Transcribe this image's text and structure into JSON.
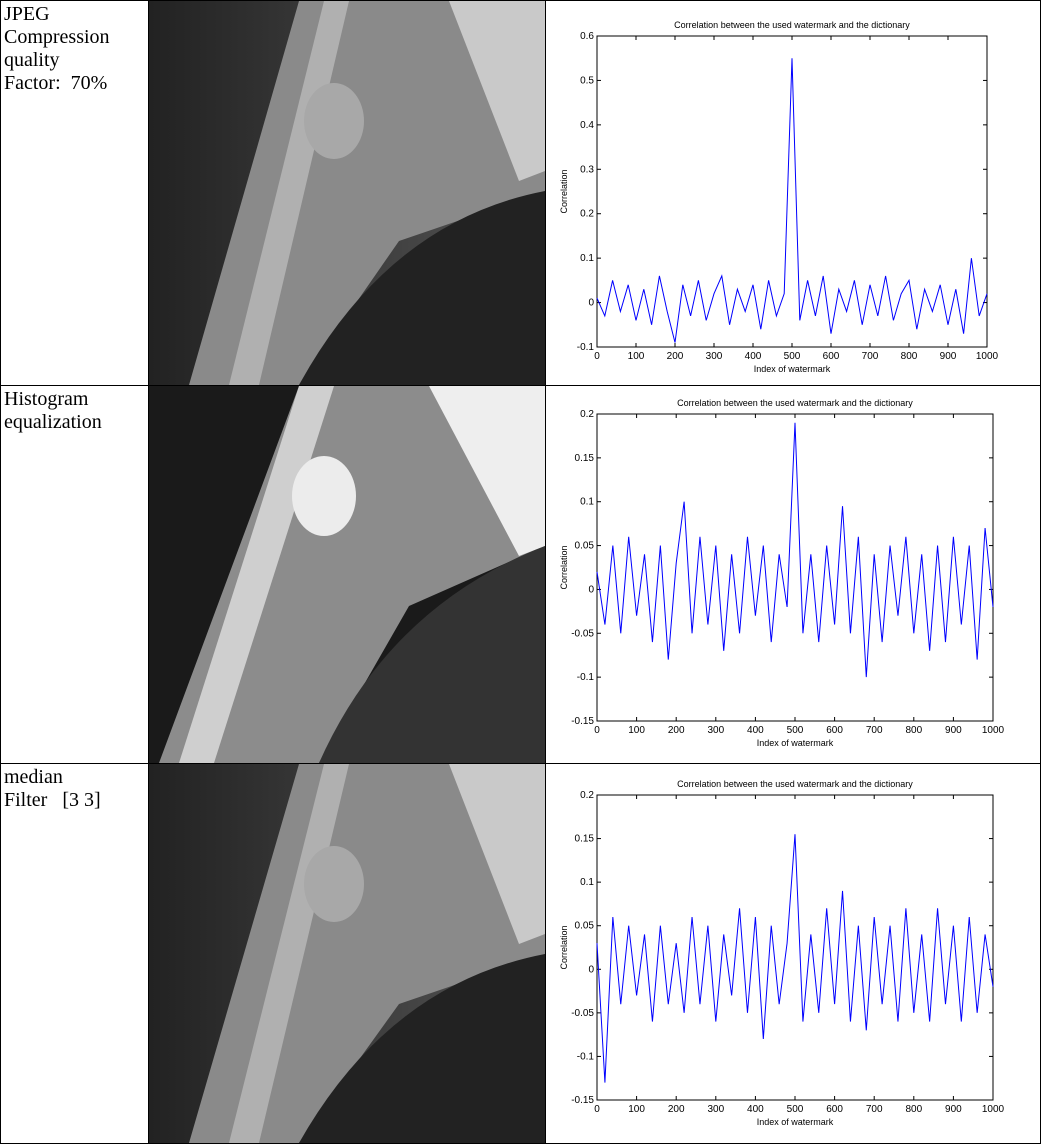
{
  "table": {
    "rows": [
      {
        "label": [
          "JPEG",
          "Compression",
          "quality",
          "Factor:  70%"
        ]
      },
      {
        "label": [
          "Histogram",
          "equalization"
        ]
      },
      {
        "label": [
          "median",
          "Filter   [3 3]"
        ]
      }
    ]
  },
  "chart_data": [
    {
      "type": "line",
      "title": "Correlation between the used watermark and the dictionary",
      "xlabel": "Index of watermark",
      "ylabel": "Correlation",
      "color": "#0000ff",
      "xlim": [
        0,
        1000
      ],
      "ylim": [
        -0.1,
        0.6
      ],
      "xticks": [
        0,
        100,
        200,
        300,
        400,
        500,
        600,
        700,
        800,
        900,
        1000
      ],
      "yticks": [
        -0.1,
        0,
        0.1,
        0.2,
        0.3,
        0.4,
        0.5,
        0.6
      ],
      "x": [
        0,
        20,
        40,
        60,
        80,
        100,
        120,
        140,
        160,
        180,
        200,
        220,
        240,
        260,
        280,
        300,
        320,
        340,
        360,
        380,
        400,
        420,
        440,
        460,
        480,
        500,
        520,
        540,
        560,
        580,
        600,
        620,
        640,
        660,
        680,
        700,
        720,
        740,
        760,
        780,
        800,
        820,
        840,
        860,
        880,
        900,
        920,
        940,
        960,
        980,
        1000
      ],
      "values": [
        0.01,
        -0.03,
        0.05,
        -0.02,
        0.04,
        -0.04,
        0.03,
        -0.05,
        0.06,
        -0.02,
        -0.09,
        0.04,
        -0.03,
        0.05,
        -0.04,
        0.02,
        0.06,
        -0.05,
        0.03,
        -0.02,
        0.04,
        -0.06,
        0.05,
        -0.03,
        0.02,
        0.55,
        -0.04,
        0.05,
        -0.03,
        0.06,
        -0.07,
        0.03,
        -0.02,
        0.05,
        -0.05,
        0.04,
        -0.03,
        0.06,
        -0.04,
        0.02,
        0.05,
        -0.06,
        0.03,
        -0.02,
        0.04,
        -0.05,
        0.03,
        -0.07,
        0.1,
        -0.03,
        0.02
      ]
    },
    {
      "type": "line",
      "title": "Correlation between the used watermark and the dictionary",
      "xlabel": "Index of watermark",
      "ylabel": "Correlation",
      "color": "#0000ff",
      "xlim": [
        0,
        1000
      ],
      "ylim": [
        -0.15,
        0.2
      ],
      "xticks": [
        0,
        100,
        200,
        300,
        400,
        500,
        600,
        700,
        800,
        900,
        1000
      ],
      "yticks": [
        -0.15,
        -0.1,
        -0.05,
        0,
        0.05,
        0.1,
        0.15,
        0.2
      ],
      "x": [
        0,
        20,
        40,
        60,
        80,
        100,
        120,
        140,
        160,
        180,
        200,
        220,
        240,
        260,
        280,
        300,
        320,
        340,
        360,
        380,
        400,
        420,
        440,
        460,
        480,
        500,
        520,
        540,
        560,
        580,
        600,
        620,
        640,
        660,
        680,
        700,
        720,
        740,
        760,
        780,
        800,
        820,
        840,
        860,
        880,
        900,
        920,
        940,
        960,
        980,
        1000
      ],
      "values": [
        0.02,
        -0.04,
        0.05,
        -0.05,
        0.06,
        -0.03,
        0.04,
        -0.06,
        0.05,
        -0.08,
        0.03,
        0.1,
        -0.05,
        0.06,
        -0.04,
        0.05,
        -0.07,
        0.04,
        -0.05,
        0.06,
        -0.03,
        0.05,
        -0.06,
        0.04,
        -0.02,
        0.19,
        -0.05,
        0.04,
        -0.06,
        0.05,
        -0.04,
        0.095,
        -0.05,
        0.06,
        -0.1,
        0.04,
        -0.06,
        0.05,
        -0.03,
        0.06,
        -0.05,
        0.04,
        -0.07,
        0.05,
        -0.06,
        0.06,
        -0.04,
        0.05,
        -0.08,
        0.07,
        -0.02
      ]
    },
    {
      "type": "line",
      "title": "Correlation between the used watermark and the dictionary",
      "xlabel": "Index of watermark",
      "ylabel": "Correlation",
      "color": "#0000ff",
      "xlim": [
        0,
        1000
      ],
      "ylim": [
        -0.15,
        0.2
      ],
      "xticks": [
        0,
        100,
        200,
        300,
        400,
        500,
        600,
        700,
        800,
        900,
        1000
      ],
      "yticks": [
        -0.15,
        -0.1,
        -0.05,
        0,
        0.05,
        0.1,
        0.15,
        0.2
      ],
      "x": [
        0,
        20,
        40,
        60,
        80,
        100,
        120,
        140,
        160,
        180,
        200,
        220,
        240,
        260,
        280,
        300,
        320,
        340,
        360,
        380,
        400,
        420,
        440,
        460,
        480,
        500,
        520,
        540,
        560,
        580,
        600,
        620,
        640,
        660,
        680,
        700,
        720,
        740,
        760,
        780,
        800,
        820,
        840,
        860,
        880,
        900,
        920,
        940,
        960,
        980,
        1000
      ],
      "values": [
        0.03,
        -0.13,
        0.06,
        -0.04,
        0.05,
        -0.03,
        0.04,
        -0.06,
        0.05,
        -0.04,
        0.03,
        -0.05,
        0.06,
        -0.04,
        0.05,
        -0.06,
        0.04,
        -0.03,
        0.07,
        -0.05,
        0.06,
        -0.08,
        0.05,
        -0.04,
        0.03,
        0.155,
        -0.06,
        0.04,
        -0.05,
        0.07,
        -0.04,
        0.09,
        -0.06,
        0.05,
        -0.07,
        0.06,
        -0.04,
        0.05,
        -0.06,
        0.07,
        -0.05,
        0.04,
        -0.06,
        0.07,
        -0.04,
        0.05,
        -0.06,
        0.06,
        -0.05,
        0.04,
        -0.02
      ]
    }
  ]
}
